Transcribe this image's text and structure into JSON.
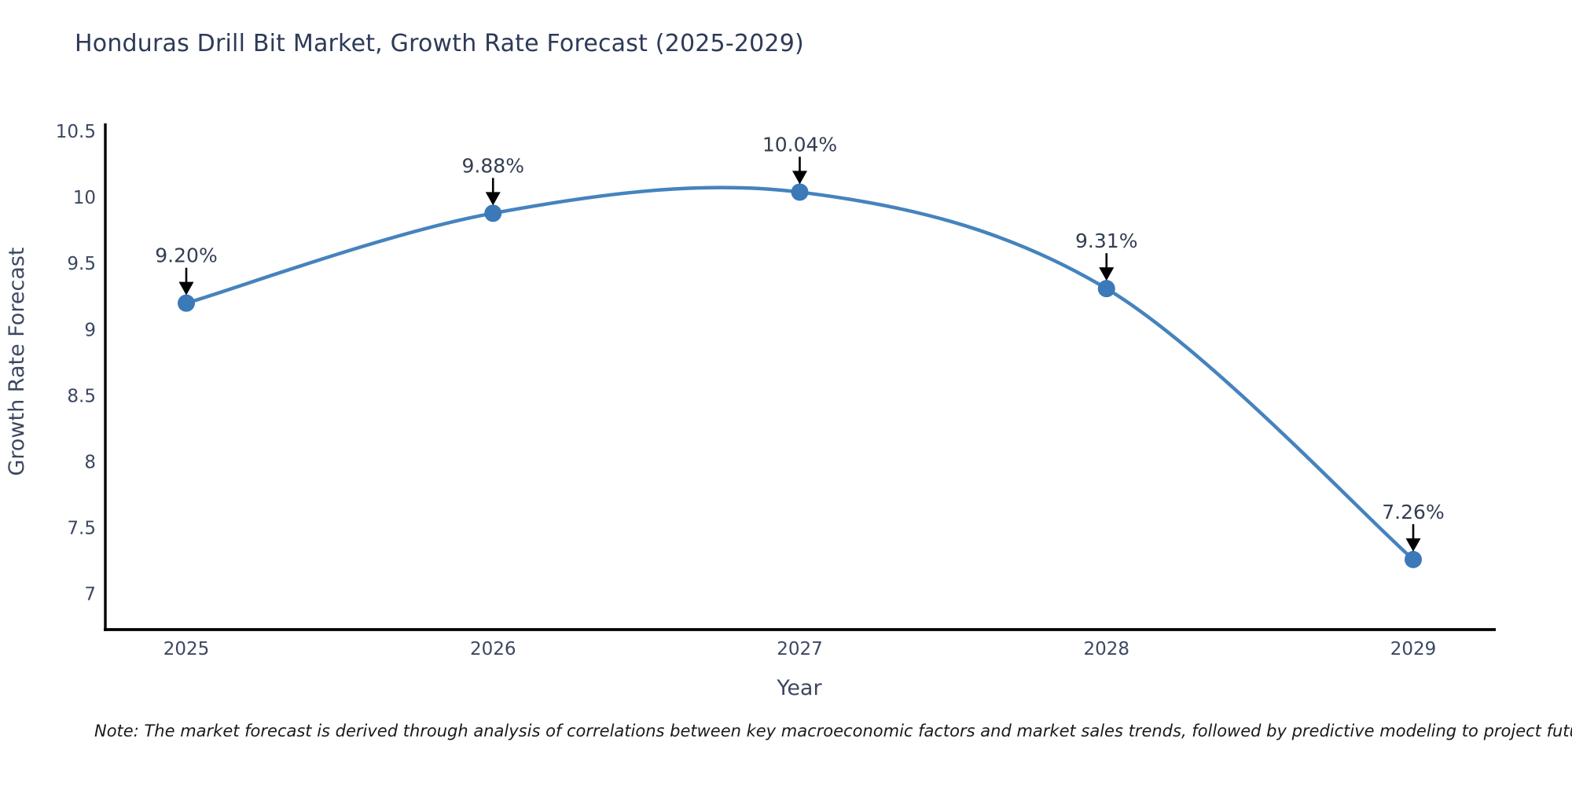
{
  "chart_data": {
    "type": "line",
    "title": "Honduras Drill Bit Market, Growth Rate Forecast (2025-2029)",
    "xlabel": "Year",
    "ylabel": "Growth Rate Forecast",
    "categories": [
      "2025",
      "2026",
      "2027",
      "2028",
      "2029"
    ],
    "series": [
      {
        "name": "Growth Rate Forecast",
        "values": [
          9.2,
          9.88,
          10.04,
          9.31,
          7.26
        ],
        "point_labels": [
          "9.20%",
          "9.88%",
          "10.04%",
          "9.31%",
          "7.26%"
        ]
      }
    ],
    "y_ticks": [
      10.5,
      10,
      9.5,
      9,
      8.5,
      8,
      7.5,
      7
    ],
    "ylim": [
      6.73,
      10.56
    ],
    "grid": false,
    "legend_position": "none",
    "smooth": true,
    "line_color": "#4583bd",
    "marker_color": "#3b79b8",
    "arrow_color": "#000000"
  },
  "note": "Note: The market forecast is derived through analysis of correlations between key macroeconomic factors and market sales trends, followed by predictive modeling to project future sal",
  "colors": {
    "background": "#ffffff",
    "title_text": "#2d3a57",
    "axis_text": "#3c4861",
    "tick_text": "#3c4861",
    "label_text": "#333e52",
    "spine": "#000000",
    "note_text": "#1a1a1a"
  }
}
